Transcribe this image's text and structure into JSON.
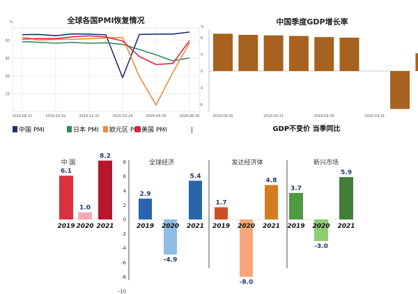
{
  "chart_data": [
    {
      "type": "line",
      "title": "全球各国PMI恢复情况",
      "y_unit": "%",
      "x_ticks": [
        "2019-08-31",
        "2019-10-31",
        "2019-12-31",
        "2020-02-29",
        "2020-04-30",
        "2020-06-30"
      ],
      "y_ticks": [
        20,
        30,
        40,
        50
      ],
      "ylim": [
        10,
        57
      ],
      "x": [
        "2019-08",
        "2019-09",
        "2019-10",
        "2019-11",
        "2019-12",
        "2020-01",
        "2020-02",
        "2020-03",
        "2020-04",
        "2020-05",
        "2020-06"
      ],
      "series": [
        {
          "name": "中国 PMI",
          "color": "#1f2e6e",
          "values": [
            53.2,
            53.3,
            52.6,
            53.6,
            53.5,
            53.1,
            29.0,
            53.3,
            53.5,
            53.5,
            54.6
          ]
        },
        {
          "name": "日本 PMI",
          "color": "#2e8b57",
          "values": [
            49.3,
            48.9,
            48.4,
            48.8,
            48.4,
            48.6,
            47.7,
            44.8,
            41.9,
            38.4,
            40.1
          ]
        },
        {
          "name": "欧元区 PMI",
          "color": "#f0893c",
          "values": [
            51.9,
            50.1,
            50.6,
            50.6,
            50.9,
            51.3,
            51.6,
            29.7,
            13.6,
            31.9,
            48.5
          ]
        },
        {
          "name": "美国 PMI",
          "color": "#e8203a",
          "values": [
            50.7,
            51.0,
            50.9,
            52.0,
            52.5,
            51.9,
            49.6,
            40.9,
            36.4,
            37.0,
            49.8
          ]
        }
      ],
      "legend_tail": "|",
      "grid": true,
      "legend": "bottom"
    },
    {
      "type": "bar",
      "title": "中国季度GDP增长率",
      "y_unit": "%",
      "footer": "GDP不变价 当季同比",
      "x_ticks": [
        "2018-09-30",
        "2019-03-31",
        "2019-09-30",
        "2020-03-31"
      ],
      "y_ticks": [
        6,
        3,
        0,
        -3,
        -6
      ],
      "ylim": [
        -7.5,
        7.5
      ],
      "categories": [
        "2018-Q2",
        "2018-Q3",
        "2018-Q4",
        "2019-Q1",
        "2019-Q2",
        "2019-Q3",
        "2019-Q4",
        "2020-Q1",
        "2020-Q2"
      ],
      "values": [
        6.7,
        6.5,
        6.4,
        6.3,
        6.1,
        6.0,
        0,
        -6.8,
        3.2
      ],
      "color": "#a6621e",
      "grid": false
    },
    {
      "type": "bar",
      "panels": [
        {
          "name": "中 国",
          "years": [
            "2019",
            "2020",
            "2021"
          ],
          "values": [
            6.1,
            1.0,
            8.2
          ],
          "colors": [
            "#d9323e",
            "#f5a9b8",
            "#b5172b"
          ]
        },
        {
          "name": "全球经济",
          "years": [
            "2019",
            "2020",
            "2021"
          ],
          "values": [
            2.9,
            -4.9,
            5.4
          ],
          "colors": [
            "#2b63b0",
            "#8fbde4",
            "#2866a9"
          ]
        },
        {
          "name": "发达经济体",
          "years": [
            "2019",
            "2020",
            "2021"
          ],
          "values": [
            1.7,
            -8.0,
            4.8
          ],
          "colors": [
            "#cf4f2a",
            "#f7a679",
            "#d47d1f"
          ]
        },
        {
          "name": "新兴市场",
          "years": [
            "2019",
            "2020",
            "2021"
          ],
          "values": [
            3.7,
            -3.0,
            5.9
          ],
          "colors": [
            "#4e9a41",
            "#8ccd71",
            "#3f7f37"
          ]
        }
      ],
      "y_ticks": [
        8,
        6,
        4,
        2,
        0,
        -2,
        -4,
        -6,
        -8,
        -10
      ],
      "ylim": [
        -10,
        8
      ],
      "grid": false
    }
  ]
}
